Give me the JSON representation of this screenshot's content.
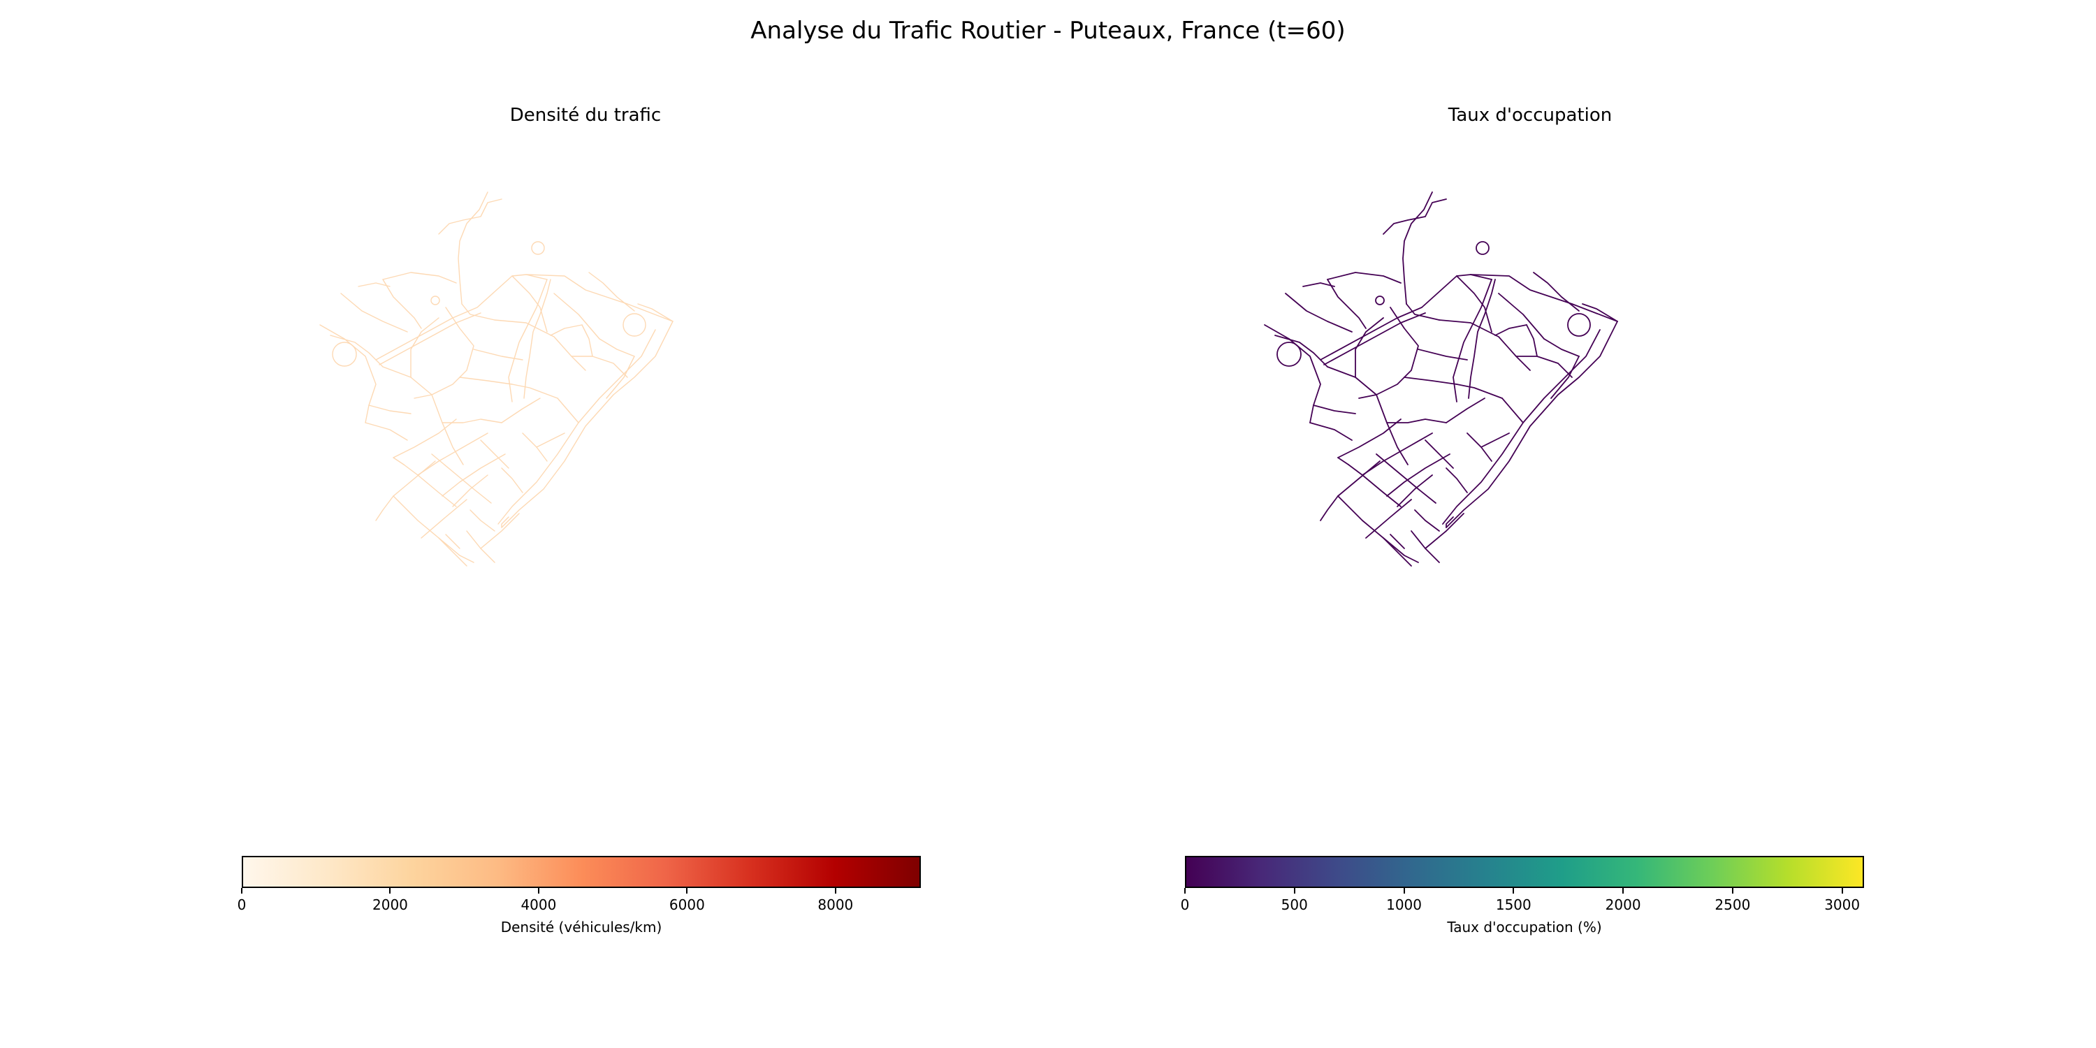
{
  "figure": {
    "title": "Analyse du Trafic Routier - Puteaux, France (t=60)"
  },
  "panels": [
    {
      "title": "Densité du trafic",
      "road_color": "#fdd9b4",
      "colorbar": {
        "label": "Densité (véhicules/km)",
        "min": 0,
        "max": 9150,
        "ticks": [
          0,
          2000,
          4000,
          6000,
          8000
        ],
        "tick_labels": [
          "0",
          "2000",
          "4000",
          "6000",
          "8000"
        ],
        "colormap": "OrRd"
      }
    },
    {
      "title": "Taux d'occupation",
      "road_color": "#440154",
      "colorbar": {
        "label": "Taux d'occupation (%)",
        "min": 0,
        "max": 3100,
        "ticks": [
          0,
          500,
          1000,
          1500,
          2000,
          2500,
          3000
        ],
        "tick_labels": [
          "0",
          "500",
          "1000",
          "1500",
          "2000",
          "2500",
          "3000"
        ],
        "colormap": "viridis"
      }
    }
  ]
}
